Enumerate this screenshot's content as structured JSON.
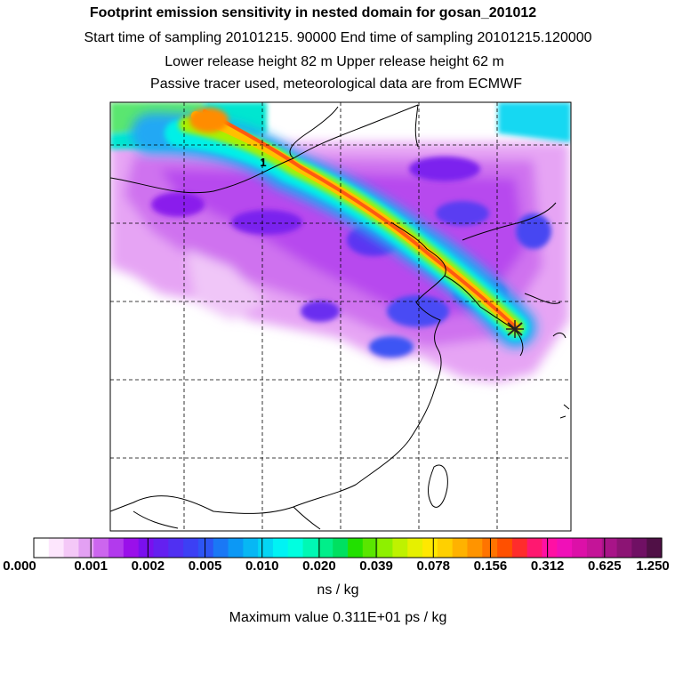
{
  "header": {
    "title": "Footprint emission sensitivity in nested domain for gosan_201012",
    "line1": "Start time of sampling 20101215. 90000      End time of sampling 20101215.120000",
    "line2": "Lower release height   82 m          Upper release height   62 m",
    "line3": "Passive tracer used, meteorological data are from ECMWF"
  },
  "map": {
    "station_marker_label": "1",
    "station": "gosan"
  },
  "colorbar": {
    "tick_labels": [
      "0.000",
      "0.001",
      "0.002",
      "0.005",
      "0.010",
      "0.020",
      "0.039",
      "0.078",
      "0.156",
      "0.312",
      "0.625",
      "1.250"
    ],
    "colors": [
      "#ffffff",
      "#fde6fd",
      "#f4c8f7",
      "#e3a0f3",
      "#cc66ee",
      "#b23aed",
      "#9a10ea",
      "#7a10ee",
      "#6420f0",
      "#5030f2",
      "#3c40f4",
      "#2d55f5",
      "#1a78f5",
      "#0c98f5",
      "#07b7f4",
      "#04d6f4",
      "#00f3f4",
      "#00ffe0",
      "#00f8b4",
      "#00ef8a",
      "#00e060",
      "#22e000",
      "#5ae600",
      "#8ef000",
      "#bef200",
      "#e6f000",
      "#ffe800",
      "#ffd000",
      "#ffb200",
      "#ff9400",
      "#ff7400",
      "#ff5000",
      "#ff2c2c",
      "#ff1870",
      "#ff10a4",
      "#f010b8",
      "#dc10a8",
      "#c41498",
      "#a81488",
      "#8c1474",
      "#701064",
      "#501046"
    ],
    "unit": "ns / kg",
    "max_value_text": "Maximum value  0.311E+01 ps / kg"
  }
}
